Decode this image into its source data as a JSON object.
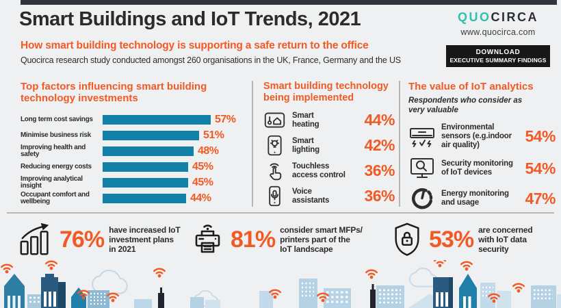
{
  "header": {
    "title": "Smart Buildings and IoT Trends, 2021",
    "subtitle": "How smart building technology is supporting a safe return to the office",
    "description": "Quocirca research study conducted amongst 260 organisations in the UK, France, Germany and the US",
    "logo": {
      "part1": "QUO",
      "part2": "CIRCA",
      "website": "www.quocirca.com"
    },
    "download_button": {
      "line1": "DOWNLOAD",
      "line2": "EXECUTIVE SUMMARY FINDINGS"
    }
  },
  "chart_data": {
    "type": "bar",
    "orientation": "horizontal",
    "title": "Top factors influencing smart building technology investments",
    "categories": [
      "Long term cost savings",
      "Minimise business risk",
      "Improving health and safety",
      "Reducing energy costs",
      "Improving analytical insight",
      "Occupant comfort and wellbeing"
    ],
    "values": [
      57,
      51,
      48,
      45,
      45,
      44
    ],
    "value_labels": [
      "57%",
      "51%",
      "48%",
      "45%",
      "45%",
      "44%"
    ],
    "unit": "percent",
    "xlim": [
      0,
      100
    ],
    "grid": false,
    "bar_color": "#1380a8",
    "value_label_color": "#f15a24"
  },
  "sections": {
    "factors": {
      "heading": "Top factors influencing smart building\ntechnology investments"
    },
    "implemented": {
      "heading": "Smart building technology\nbeing implemented",
      "items": [
        {
          "icon": "smart-heating-icon",
          "label": "Smart\nheating",
          "value": "44%"
        },
        {
          "icon": "smart-lighting-icon",
          "label": "Smart\nlighting",
          "value": "42%"
        },
        {
          "icon": "touchless-access-icon",
          "label": "Touchless\naccess control",
          "value": "36%"
        },
        {
          "icon": "voice-assistant-icon",
          "label": "Voice\nassistants",
          "value": "36%"
        }
      ]
    },
    "analytics": {
      "heading": "The value of IoT analytics",
      "subheading": "Respondents who consider as\nvery valuable",
      "items": [
        {
          "icon": "environmental-sensor-icon",
          "label": "Environmental\nsensors (e.g.indoor\nair quality)",
          "value": "54%"
        },
        {
          "icon": "security-monitoring-icon",
          "label": "Security monitoring\nof IoT devices",
          "value": "54%"
        },
        {
          "icon": "energy-monitoring-icon",
          "label": "Energy monitoring\nand usage",
          "value": "47%"
        }
      ]
    },
    "highlights": [
      {
        "icon": "growth-chart-icon",
        "value": "76%",
        "text": "have increased IoT\ninvestment plans\nin 2021"
      },
      {
        "icon": "printer-icon",
        "value": "81%",
        "text": "consider smart MFPs/\nprinters part of the\nIoT landscape"
      },
      {
        "icon": "shield-lock-icon",
        "value": "53%",
        "text": "are concerned\nwith IoT data\nsecurity"
      }
    ]
  },
  "colors": {
    "background": "#eef0f1",
    "accent_orange": "#f15a24",
    "bar_teal": "#1380a8",
    "logo_teal": "#2fc0ae",
    "dark_text": "#2b2b2b",
    "button_black": "#171717",
    "divider_gray": "#b6b6b6",
    "skyline_navy": "#2a5a80",
    "skyline_teal": "#2180aa",
    "skyline_light_blue": "#b4d2e4",
    "wifi_orange": "#f15a24"
  }
}
